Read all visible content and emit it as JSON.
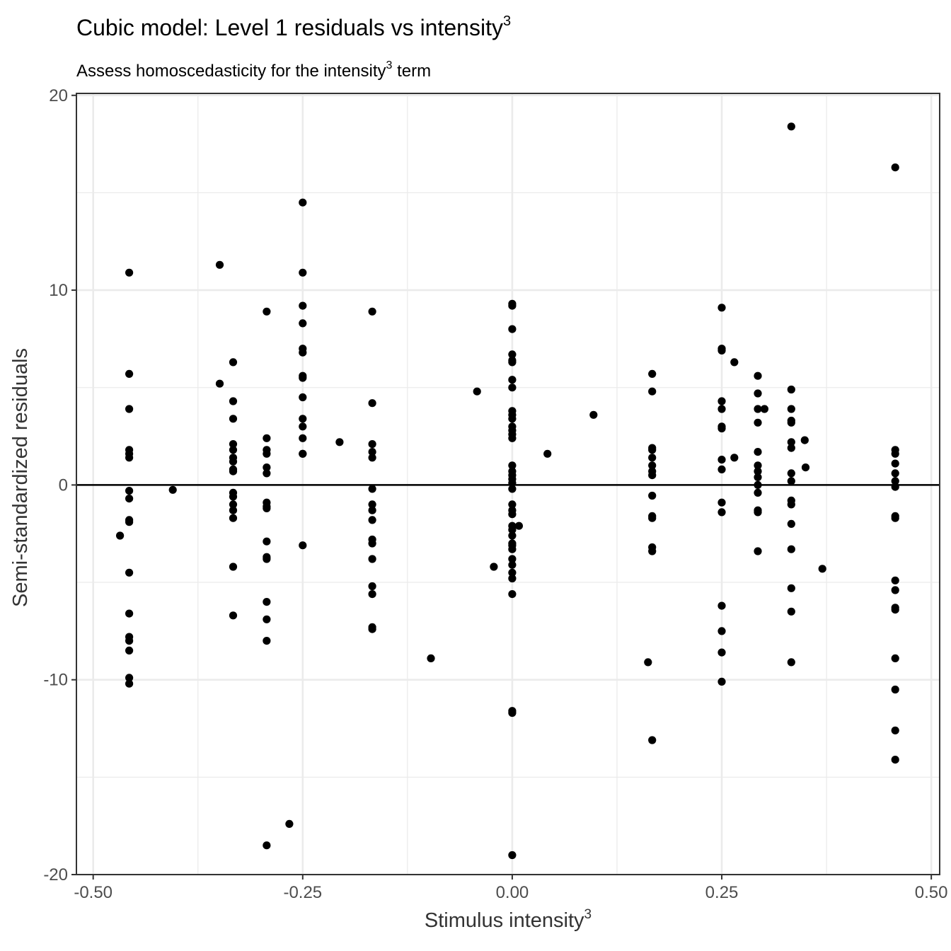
{
  "chart_data": {
    "type": "scatter",
    "title": "Cubic model: Level 1 residuals vs intensity",
    "title_superscript": "3",
    "subtitle": "Assess homoscedasticity for the intensity",
    "subtitle_superscript": "3",
    "subtitle_suffix": " term",
    "xlabel": "Stimulus intensity",
    "xlabel_superscript": "3",
    "ylabel": "Semi-standardized residuals",
    "xlim": [
      -0.52,
      0.51
    ],
    "ylim": [
      -20.0,
      20.1
    ],
    "x_ticks": [
      -0.5,
      -0.25,
      0.0,
      0.25,
      0.5
    ],
    "x_tick_labels": [
      "-0.50",
      "-0.25",
      "0.00",
      "0.25",
      "0.50"
    ],
    "y_ticks": [
      -20,
      -10,
      0,
      10,
      20
    ],
    "y_tick_labels": [
      "-20",
      "-10",
      "0",
      "10",
      "20"
    ],
    "hline": 0,
    "grid": true,
    "point_color": "#000000",
    "series": [
      {
        "points": [
          [
            -0.457,
            10.9
          ],
          [
            -0.457,
            5.7
          ],
          [
            -0.457,
            3.9
          ],
          [
            -0.457,
            1.8
          ],
          [
            -0.457,
            1.6
          ],
          [
            -0.457,
            1.4
          ],
          [
            -0.457,
            -0.3
          ],
          [
            -0.457,
            -0.7
          ],
          [
            -0.457,
            -1.8
          ],
          [
            -0.457,
            -1.9
          ],
          [
            -0.457,
            -4.5
          ],
          [
            -0.457,
            -6.6
          ],
          [
            -0.457,
            -7.8
          ],
          [
            -0.457,
            -8.0
          ],
          [
            -0.457,
            -8.5
          ],
          [
            -0.457,
            -9.9
          ],
          [
            -0.457,
            -10.2
          ],
          [
            -0.468,
            -2.6
          ],
          [
            -0.405,
            -0.25
          ],
          [
            -0.349,
            11.3
          ],
          [
            -0.349,
            5.2
          ],
          [
            -0.333,
            6.3
          ],
          [
            -0.333,
            4.3
          ],
          [
            -0.333,
            3.4
          ],
          [
            -0.333,
            2.1
          ],
          [
            -0.333,
            1.8
          ],
          [
            -0.333,
            1.4
          ],
          [
            -0.333,
            1.2
          ],
          [
            -0.333,
            0.8
          ],
          [
            -0.333,
            0.7
          ],
          [
            -0.333,
            -0.4
          ],
          [
            -0.333,
            -0.6
          ],
          [
            -0.333,
            -1.0
          ],
          [
            -0.333,
            -1.3
          ],
          [
            -0.333,
            -1.7
          ],
          [
            -0.333,
            -4.2
          ],
          [
            -0.333,
            -6.7
          ],
          [
            -0.293,
            8.9
          ],
          [
            -0.293,
            2.4
          ],
          [
            -0.293,
            1.8
          ],
          [
            -0.293,
            1.6
          ],
          [
            -0.293,
            0.9
          ],
          [
            -0.293,
            0.6
          ],
          [
            -0.293,
            -0.9
          ],
          [
            -0.293,
            -1.1
          ],
          [
            -0.293,
            -1.2
          ],
          [
            -0.293,
            -2.9
          ],
          [
            -0.293,
            -3.7
          ],
          [
            -0.293,
            -3.8
          ],
          [
            -0.293,
            -6.0
          ],
          [
            -0.293,
            -6.9
          ],
          [
            -0.293,
            -8.0
          ],
          [
            -0.293,
            -18.5
          ],
          [
            -0.266,
            -17.4
          ],
          [
            -0.25,
            14.5
          ],
          [
            -0.25,
            10.9
          ],
          [
            -0.25,
            9.2
          ],
          [
            -0.25,
            8.3
          ],
          [
            -0.25,
            7.0
          ],
          [
            -0.25,
            6.8
          ],
          [
            -0.25,
            5.6
          ],
          [
            -0.25,
            5.5
          ],
          [
            -0.25,
            4.5
          ],
          [
            -0.25,
            3.4
          ],
          [
            -0.25,
            3.0
          ],
          [
            -0.25,
            2.4
          ],
          [
            -0.25,
            1.6
          ],
          [
            -0.25,
            1.6
          ],
          [
            -0.25,
            -3.1
          ],
          [
            -0.206,
            2.2
          ],
          [
            -0.167,
            8.9
          ],
          [
            -0.167,
            4.2
          ],
          [
            -0.167,
            2.1
          ],
          [
            -0.167,
            1.7
          ],
          [
            -0.167,
            1.4
          ],
          [
            -0.167,
            -0.2
          ],
          [
            -0.167,
            -1.0
          ],
          [
            -0.167,
            -1.3
          ],
          [
            -0.167,
            -1.8
          ],
          [
            -0.167,
            -2.8
          ],
          [
            -0.167,
            -3.0
          ],
          [
            -0.167,
            -3.8
          ],
          [
            -0.167,
            -5.2
          ],
          [
            -0.167,
            -5.6
          ],
          [
            -0.167,
            -7.3
          ],
          [
            -0.167,
            -7.4
          ],
          [
            -0.097,
            -8.9
          ],
          [
            -0.042,
            4.8
          ],
          [
            -0.022,
            -4.2
          ],
          [
            0.0,
            9.3
          ],
          [
            0.0,
            9.2
          ],
          [
            0.0,
            8.0
          ],
          [
            0.0,
            6.7
          ],
          [
            0.0,
            6.4
          ],
          [
            0.0,
            6.3
          ],
          [
            0.0,
            5.4
          ],
          [
            0.0,
            5.0
          ],
          [
            0.0,
            3.8
          ],
          [
            0.0,
            3.6
          ],
          [
            0.0,
            3.4
          ],
          [
            0.0,
            3.0
          ],
          [
            0.0,
            2.8
          ],
          [
            0.0,
            2.6
          ],
          [
            0.0,
            2.4
          ],
          [
            0.0,
            1.0
          ],
          [
            0.0,
            0.7
          ],
          [
            0.0,
            0.5
          ],
          [
            0.0,
            0.3
          ],
          [
            0.0,
            0.1
          ],
          [
            0.0,
            -0.2
          ],
          [
            0.0,
            -1.0
          ],
          [
            0.0,
            -1.3
          ],
          [
            0.0,
            -1.5
          ],
          [
            0.0,
            -2.1
          ],
          [
            0.0,
            -2.3
          ],
          [
            0.0,
            -2.6
          ],
          [
            0.0,
            -3.0
          ],
          [
            0.0,
            -3.1
          ],
          [
            0.0,
            -3.3
          ],
          [
            0.0,
            -3.8
          ],
          [
            0.0,
            -4.1
          ],
          [
            0.0,
            -4.5
          ],
          [
            0.0,
            -4.8
          ],
          [
            0.0,
            -5.6
          ],
          [
            0.0,
            -11.6
          ],
          [
            0.0,
            -11.7
          ],
          [
            0.0,
            -19.0
          ],
          [
            0.008,
            -2.1
          ],
          [
            0.042,
            1.6
          ],
          [
            0.097,
            3.6
          ],
          [
            0.167,
            5.7
          ],
          [
            0.167,
            4.8
          ],
          [
            0.167,
            1.9
          ],
          [
            0.167,
            1.8
          ],
          [
            0.167,
            1.4
          ],
          [
            0.167,
            1.0
          ],
          [
            0.167,
            0.7
          ],
          [
            0.167,
            0.5
          ],
          [
            0.167,
            -0.55
          ],
          [
            0.167,
            -1.6
          ],
          [
            0.167,
            -1.7
          ],
          [
            0.167,
            -3.2
          ],
          [
            0.167,
            -3.4
          ],
          [
            0.167,
            -13.1
          ],
          [
            0.162,
            -9.1
          ],
          [
            0.25,
            9.1
          ],
          [
            0.25,
            7.0
          ],
          [
            0.25,
            6.9
          ],
          [
            0.25,
            4.3
          ],
          [
            0.25,
            3.9
          ],
          [
            0.25,
            3.0
          ],
          [
            0.25,
            2.9
          ],
          [
            0.25,
            1.3
          ],
          [
            0.25,
            0.8
          ],
          [
            0.25,
            -0.9
          ],
          [
            0.25,
            -1.4
          ],
          [
            0.25,
            -6.2
          ],
          [
            0.25,
            -7.5
          ],
          [
            0.25,
            -8.6
          ],
          [
            0.25,
            -10.1
          ],
          [
            0.265,
            6.3
          ],
          [
            0.265,
            1.4
          ],
          [
            0.293,
            5.6
          ],
          [
            0.293,
            4.7
          ],
          [
            0.293,
            3.9
          ],
          [
            0.293,
            3.2
          ],
          [
            0.293,
            1.7
          ],
          [
            0.293,
            1.0
          ],
          [
            0.293,
            0.7
          ],
          [
            0.293,
            0.4
          ],
          [
            0.293,
            0.0
          ],
          [
            0.293,
            -0.4
          ],
          [
            0.293,
            -1.3
          ],
          [
            0.293,
            -1.4
          ],
          [
            0.293,
            -3.4
          ],
          [
            0.301,
            3.9
          ],
          [
            0.333,
            18.4
          ],
          [
            0.333,
            4.9
          ],
          [
            0.333,
            3.9
          ],
          [
            0.333,
            3.3
          ],
          [
            0.333,
            3.2
          ],
          [
            0.333,
            2.2
          ],
          [
            0.333,
            1.9
          ],
          [
            0.333,
            0.6
          ],
          [
            0.333,
            0.2
          ],
          [
            0.333,
            -0.8
          ],
          [
            0.333,
            -1.0
          ],
          [
            0.333,
            -2.0
          ],
          [
            0.333,
            -3.3
          ],
          [
            0.333,
            -5.3
          ],
          [
            0.333,
            -6.5
          ],
          [
            0.333,
            -9.1
          ],
          [
            0.349,
            2.3
          ],
          [
            0.35,
            0.9
          ],
          [
            0.37,
            -4.3
          ],
          [
            0.457,
            16.3
          ],
          [
            0.457,
            1.8
          ],
          [
            0.457,
            1.6
          ],
          [
            0.457,
            1.1
          ],
          [
            0.457,
            0.6
          ],
          [
            0.457,
            0.2
          ],
          [
            0.457,
            -0.1
          ],
          [
            0.457,
            -1.6
          ],
          [
            0.457,
            -1.7
          ],
          [
            0.457,
            -4.9
          ],
          [
            0.457,
            -5.4
          ],
          [
            0.457,
            -6.3
          ],
          [
            0.457,
            -6.4
          ],
          [
            0.457,
            -8.9
          ],
          [
            0.457,
            -10.5
          ],
          [
            0.457,
            -12.6
          ],
          [
            0.457,
            -14.1
          ]
        ]
      }
    ]
  }
}
